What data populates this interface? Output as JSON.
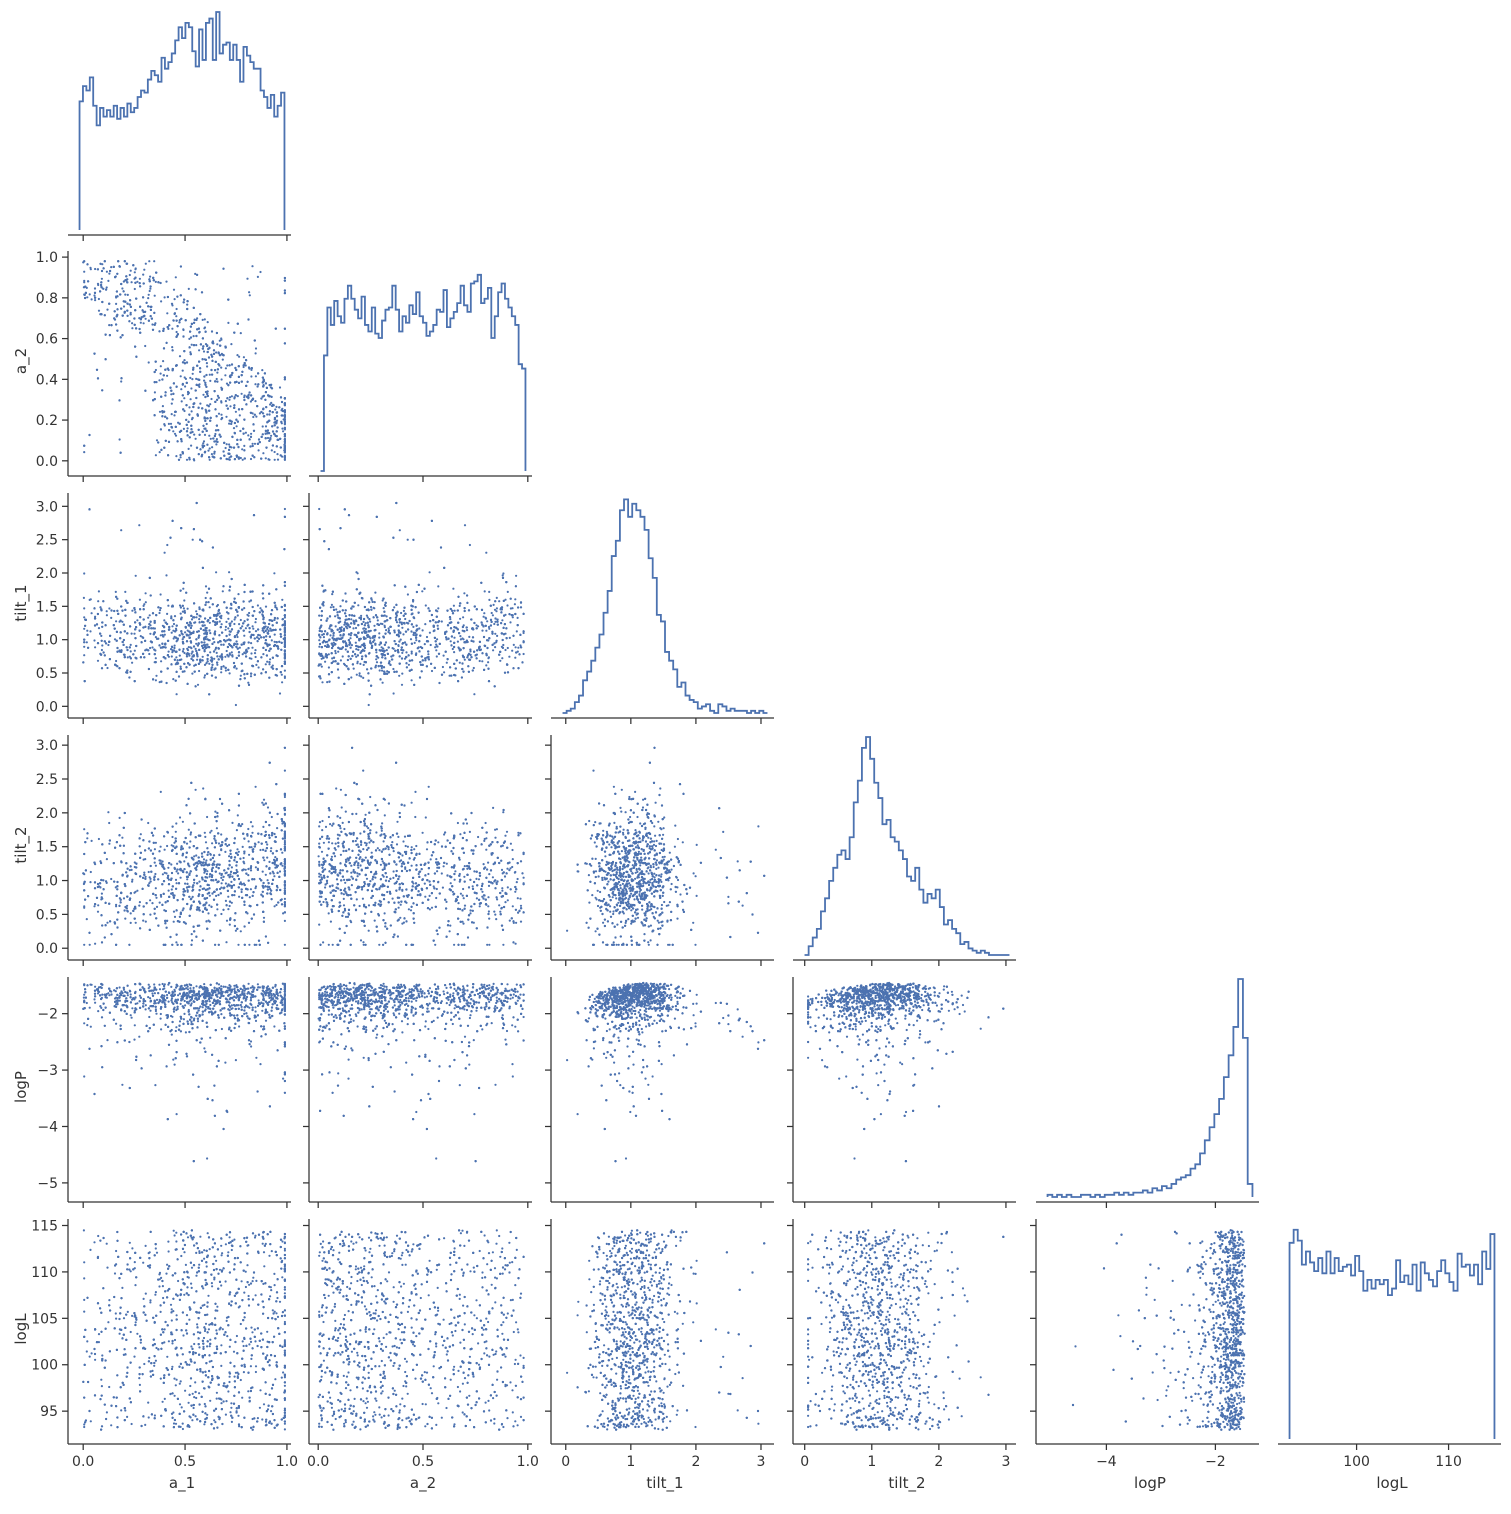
{
  "chart_data": {
    "type": "pairplot",
    "variables": [
      "a_1",
      "a_2",
      "tilt_1",
      "tilt_2",
      "logP",
      "logL"
    ],
    "layout": "corner (lower triangle)",
    "diagonal": "step histogram",
    "off_diagonal": "scatter",
    "color": "#4c72b0",
    "axis_color": "#333333",
    "axes": {
      "a_1": {
        "xlim": [
          -0.05,
          1.02
        ],
        "ylim": null,
        "ticks": [
          0.0,
          0.5,
          1.0
        ],
        "tick_labels": [
          "0.0",
          "0.5",
          "1.0"
        ]
      },
      "a_2": {
        "xlim": [
          -0.02,
          1.02
        ],
        "ylim": [
          -0.05,
          1.03
        ],
        "ticks": [
          0.0,
          0.5,
          1.0
        ],
        "tick_labels": [
          "0.0",
          "0.5",
          "1.0"
        ],
        "yticks": [
          0.0,
          0.2,
          0.4,
          0.6,
          0.8,
          1.0
        ],
        "ytick_labels": [
          "0.0",
          "0.2",
          "0.4",
          "0.6",
          "0.8",
          "1.0"
        ]
      },
      "tilt_1": {
        "xlim": [
          -0.15,
          3.2
        ],
        "ylim": [
          -0.1,
          3.2
        ],
        "ticks": [
          0,
          1,
          2,
          3
        ],
        "tick_labels": [
          "0",
          "1",
          "2",
          "3"
        ],
        "yticks": [
          0.0,
          0.5,
          1.0,
          1.5,
          2.0,
          2.5,
          3.0
        ],
        "ytick_labels": [
          "0.0",
          "0.5",
          "1.0",
          "1.5",
          "2.0",
          "2.5",
          "3.0"
        ]
      },
      "tilt_2": {
        "xlim": [
          -0.1,
          3.15
        ],
        "ylim": [
          -0.1,
          3.15
        ],
        "ticks": [
          0,
          1,
          2,
          3
        ],
        "tick_labels": [
          "0",
          "1",
          "2",
          "3"
        ],
        "yticks": [
          0.0,
          0.5,
          1.0,
          1.5,
          2.0,
          2.5,
          3.0
        ],
        "ytick_labels": [
          "0.0",
          "0.5",
          "1.0",
          "1.5",
          "2.0",
          "2.5",
          "3.0"
        ]
      },
      "logP": {
        "xlim": [
          -5.2,
          -1.2
        ],
        "ylim": [
          -5.25,
          -1.35
        ],
        "ticks": [
          -4,
          -2
        ],
        "tick_labels": [
          "−4",
          "−2"
        ],
        "yticks": [
          -5,
          -4,
          -3,
          -2
        ],
        "ytick_labels": [
          "−5",
          "−4",
          "−3",
          "−2"
        ]
      },
      "logL": {
        "xlim": [
          92.0,
          115.7
        ],
        "ylim": [
          92.0,
          115.7
        ],
        "ticks": [
          100,
          110
        ],
        "tick_labels": [
          "100",
          "110"
        ],
        "yticks": [
          95,
          100,
          105,
          110,
          115
        ],
        "ytick_labels": [
          "95",
          "100",
          "105",
          "110",
          "115"
        ]
      }
    },
    "histograms": {
      "a_1": [
        0.59,
        0.66,
        0.64,
        0.7,
        0.57,
        0.48,
        0.56,
        0.52,
        0.55,
        0.52,
        0.57,
        0.51,
        0.56,
        0.52,
        0.58,
        0.54,
        0.56,
        0.61,
        0.64,
        0.63,
        0.69,
        0.73,
        0.71,
        0.68,
        0.79,
        0.74,
        0.77,
        0.81,
        0.87,
        0.93,
        0.88,
        0.95,
        0.93,
        0.82,
        0.75,
        0.92,
        0.78,
        0.95,
        0.97,
        0.78,
        1.0,
        0.81,
        0.85,
        0.86,
        0.78,
        0.85,
        0.78,
        0.68,
        0.84,
        0.8,
        0.77,
        0.74,
        0.74,
        0.64,
        0.61,
        0.56,
        0.62,
        0.52,
        0.57,
        0.63
      ],
      "a_2": [
        0.0,
        0.53,
        0.75,
        0.67,
        0.78,
        0.71,
        0.68,
        0.79,
        0.85,
        0.79,
        0.74,
        0.7,
        0.8,
        0.67,
        0.64,
        0.75,
        0.63,
        0.61,
        0.69,
        0.74,
        0.75,
        0.85,
        0.74,
        0.64,
        0.71,
        0.68,
        0.76,
        0.72,
        0.82,
        0.71,
        0.68,
        0.62,
        0.64,
        0.67,
        0.74,
        0.73,
        0.83,
        0.66,
        0.7,
        0.73,
        0.77,
        0.85,
        0.76,
        0.73,
        0.86,
        0.87,
        0.9,
        0.77,
        0.79,
        0.84,
        0.61,
        0.71,
        0.82,
        0.86,
        0.79,
        0.75,
        0.71,
        0.67,
        0.49,
        0.47
      ],
      "tilt_1": [
        0.0,
        0.01,
        0.02,
        0.05,
        0.08,
        0.15,
        0.19,
        0.24,
        0.3,
        0.36,
        0.46,
        0.56,
        0.72,
        0.79,
        0.93,
        0.98,
        0.9,
        0.96,
        0.93,
        0.9,
        0.84,
        0.71,
        0.62,
        0.45,
        0.42,
        0.28,
        0.24,
        0.2,
        0.12,
        0.14,
        0.08,
        0.06,
        0.05,
        0.02,
        0.03,
        0.04,
        0.01,
        0.0,
        0.04,
        0.03,
        0.01,
        0.02,
        0.01,
        0.01,
        0.01,
        0.0,
        0.01,
        0.0,
        0.01,
        0.0
      ],
      "tilt_2": [
        0.0,
        0.04,
        0.08,
        0.12,
        0.2,
        0.26,
        0.34,
        0.4,
        0.46,
        0.48,
        0.44,
        0.54,
        0.7,
        0.8,
        0.95,
        1.0,
        0.9,
        0.79,
        0.72,
        0.6,
        0.62,
        0.54,
        0.52,
        0.48,
        0.44,
        0.36,
        0.34,
        0.4,
        0.3,
        0.24,
        0.28,
        0.26,
        0.3,
        0.22,
        0.14,
        0.16,
        0.12,
        0.1,
        0.05,
        0.06,
        0.03,
        0.02,
        0.01,
        0.02,
        0.01,
        0.0,
        0.0,
        0.0,
        0.0,
        0.0
      ],
      "logP": [
        0.01,
        0.0,
        0.01,
        0.0,
        0.01,
        0.0,
        0.0,
        0.01,
        0.01,
        0.0,
        0.01,
        0.0,
        0.01,
        0.01,
        0.02,
        0.01,
        0.02,
        0.01,
        0.02,
        0.02,
        0.03,
        0.02,
        0.04,
        0.03,
        0.05,
        0.04,
        0.06,
        0.08,
        0.09,
        0.1,
        0.13,
        0.15,
        0.2,
        0.26,
        0.32,
        0.38,
        0.45,
        0.55,
        0.65,
        0.78,
        1.0,
        0.73,
        0.06
      ],
      "logL": [
        0.9,
        0.96,
        0.91,
        0.8,
        0.86,
        0.81,
        0.77,
        0.83,
        0.76,
        0.86,
        0.76,
        0.83,
        0.77,
        0.79,
        0.8,
        0.75,
        0.84,
        0.77,
        0.68,
        0.73,
        0.69,
        0.73,
        0.71,
        0.73,
        0.66,
        0.69,
        0.82,
        0.72,
        0.75,
        0.71,
        0.8,
        0.68,
        0.81,
        0.76,
        0.73,
        0.7,
        0.77,
        0.82,
        0.76,
        0.72,
        0.68,
        0.85,
        0.79,
        0.8,
        0.75,
        0.8,
        0.71,
        0.86,
        0.78,
        0.94
      ]
    },
    "n_samples": 2000,
    "scatter_note": "each off-diagonal panel plots the same 2000 posterior samples as small blue points"
  }
}
